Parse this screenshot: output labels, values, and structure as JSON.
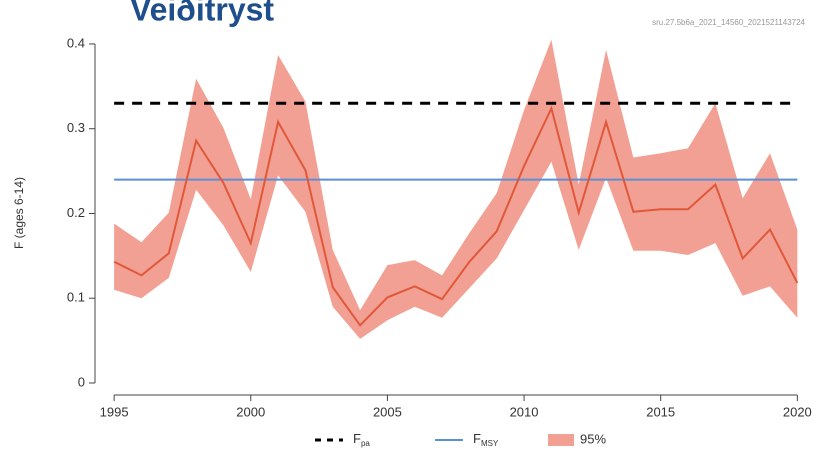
{
  "chart_data": {
    "type": "line",
    "title": "Veiðitryst",
    "subtitle": "sru.27.5b6a_2021_14560_2021521143724",
    "ylabel": "F (ages 6-14)",
    "x": [
      1995,
      1996,
      1997,
      1998,
      1999,
      2000,
      2001,
      2002,
      2003,
      2004,
      2005,
      2006,
      2007,
      2008,
      2009,
      2010,
      2011,
      2012,
      2013,
      2014,
      2015,
      2016,
      2017,
      2018,
      2019,
      2020
    ],
    "series": [
      {
        "color": "#e0583a",
        "values": [
          0.143,
          0.127,
          0.153,
          0.286,
          0.236,
          0.165,
          0.308,
          0.251,
          0.113,
          0.068,
          0.101,
          0.114,
          0.099,
          0.143,
          0.179,
          0.256,
          0.324,
          0.201,
          0.308,
          0.202,
          0.205,
          0.205,
          0.234,
          0.147,
          0.181,
          0.118
        ]
      }
    ],
    "band": {
      "name": "95%",
      "color": "#f2a093",
      "upper": [
        0.188,
        0.166,
        0.201,
        0.359,
        0.301,
        0.217,
        0.387,
        0.332,
        0.157,
        0.086,
        0.139,
        0.145,
        0.127,
        0.177,
        0.224,
        0.322,
        0.405,
        0.234,
        0.393,
        0.266,
        0.271,
        0.277,
        0.33,
        0.218,
        0.271,
        0.181
      ],
      "lower": [
        0.11,
        0.1,
        0.124,
        0.228,
        0.186,
        0.131,
        0.245,
        0.202,
        0.09,
        0.052,
        0.074,
        0.09,
        0.077,
        0.112,
        0.147,
        0.204,
        0.261,
        0.157,
        0.242,
        0.156,
        0.156,
        0.151,
        0.165,
        0.103,
        0.114,
        0.077
      ]
    },
    "reference_lines": [
      {
        "name": "F",
        "name_sub": "pa",
        "value": 0.33,
        "color": "#000000",
        "dashed": true
      },
      {
        "name": "F",
        "name_sub": "MSY",
        "value": 0.24,
        "color": "#5b8fd8",
        "dashed": false
      }
    ],
    "xlim": [
      1994.3,
      2020.5
    ],
    "xticks": [
      1995,
      2000,
      2005,
      2010,
      2015,
      2020
    ],
    "ylim": [
      0,
      0.42
    ],
    "yticks": [
      0,
      0.1,
      0.2,
      0.3,
      0.4
    ],
    "legend": "bottom"
  }
}
